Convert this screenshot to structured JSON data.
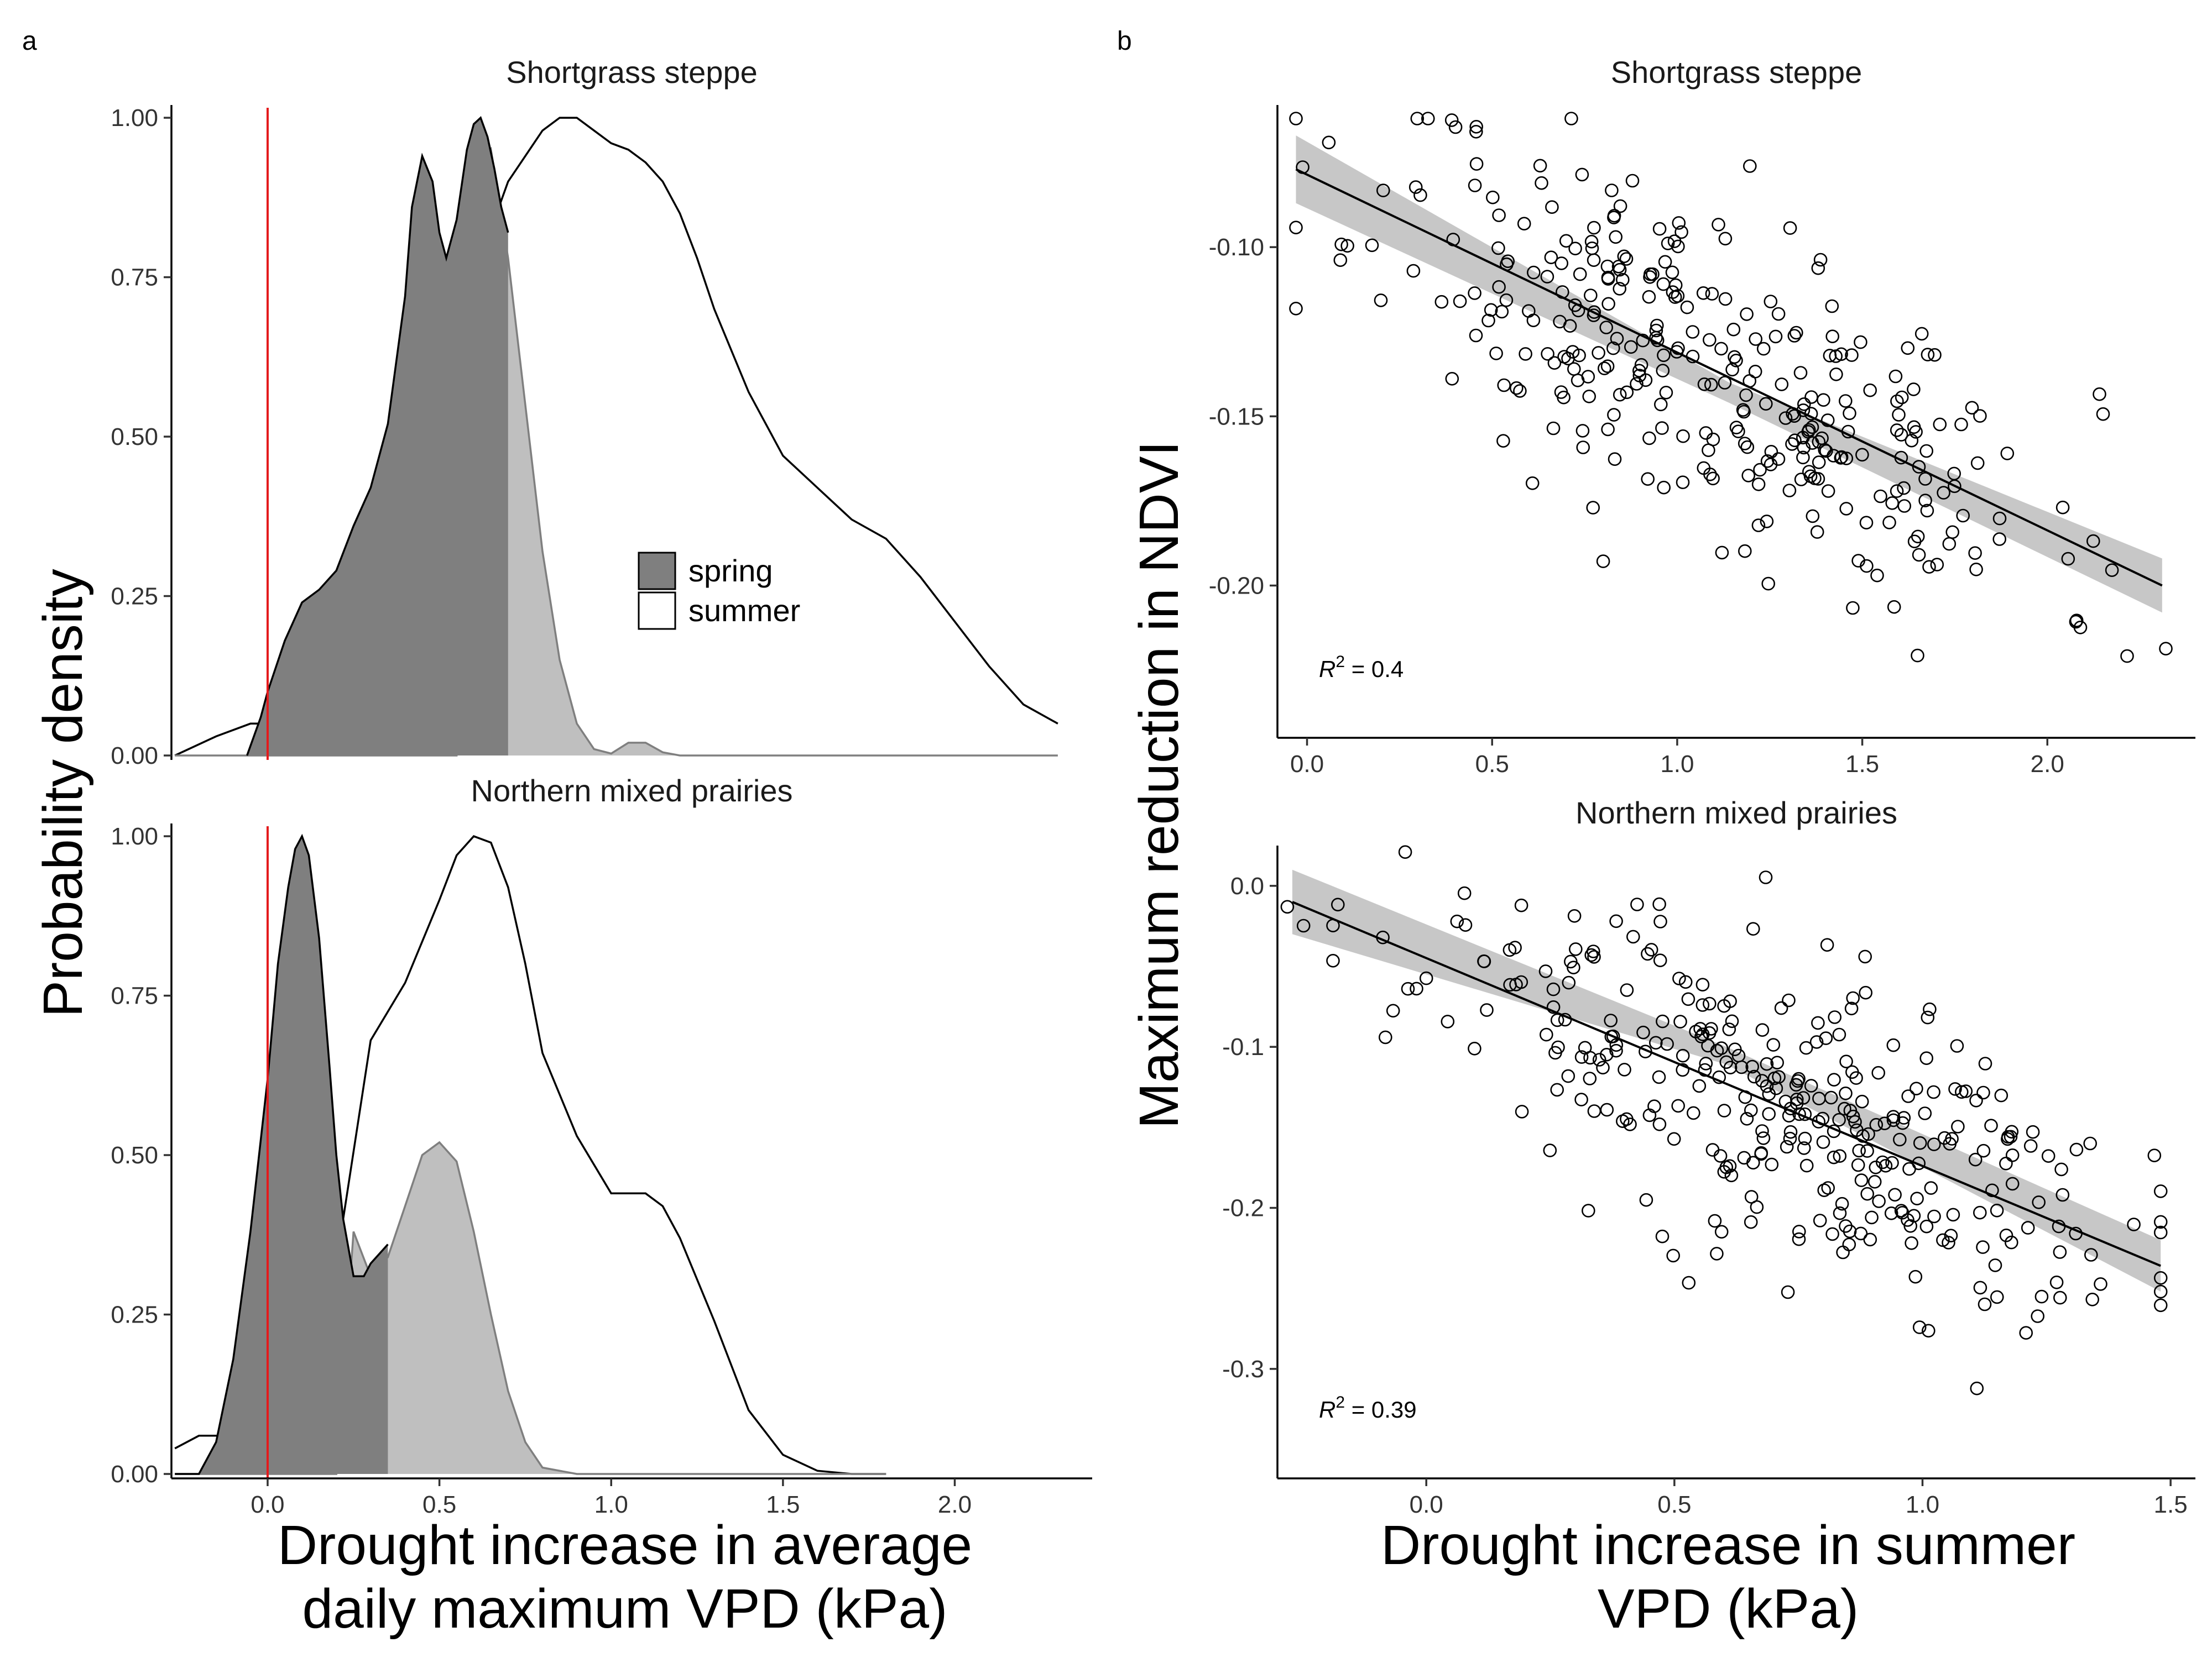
{
  "panel_tags": {
    "a": "a",
    "b": "b"
  },
  "chart_data": [
    {
      "panel": "a",
      "type": "area",
      "ylabel": "Probability density",
      "xlabel_line1": "Drought increase in average",
      "xlabel_line2": "daily maximum VPD (kPa)",
      "xlim": [
        -0.28,
        2.4
      ],
      "ylim": [
        0,
        1.02
      ],
      "x_ticks": [
        "0.0",
        "0.5",
        "1.0",
        "1.5",
        "2.0"
      ],
      "y_ticks": [
        "0.00",
        "0.25",
        "0.50",
        "0.75",
        "1.00"
      ],
      "reference_line": {
        "x": 0,
        "color": "#e41a1c"
      },
      "legend": {
        "position": "inside-right",
        "entries": [
          {
            "label": "spring",
            "color": "#7f7f7f"
          },
          {
            "label": "summer",
            "color": "#ffffff"
          }
        ]
      },
      "facets": [
        {
          "strip": "Shortgrass steppe",
          "series": [
            {
              "name": "summer",
              "fill": "#ffffff",
              "stroke": "#000000",
              "x": [
                -0.27,
                -0.15,
                -0.05,
                0.0,
                0.05,
                0.1,
                0.2,
                0.3,
                0.4,
                0.5,
                0.6,
                0.7,
                0.8,
                0.85,
                0.9,
                0.95,
                1.0,
                1.05,
                1.1,
                1.15,
                1.2,
                1.25,
                1.3,
                1.4,
                1.5,
                1.6,
                1.7,
                1.8,
                1.9,
                2.0,
                2.1,
                2.2,
                2.3
              ],
              "y": [
                0.0,
                0.03,
                0.05,
                0.05,
                0.04,
                0.03,
                0.04,
                0.1,
                0.3,
                0.55,
                0.75,
                0.9,
                0.98,
                1.0,
                1.0,
                0.98,
                0.96,
                0.95,
                0.93,
                0.9,
                0.85,
                0.78,
                0.7,
                0.57,
                0.47,
                0.42,
                0.37,
                0.34,
                0.28,
                0.21,
                0.14,
                0.08,
                0.05
              ]
            },
            {
              "name": "spring-light",
              "fill": "#bfbfbf",
              "stroke": "#7f7f7f",
              "x": [
                -0.27,
                -0.2,
                -0.1,
                0.0,
                0.1,
                0.2,
                0.3,
                0.4,
                0.5,
                0.55,
                0.6,
                0.65,
                0.7,
                0.75,
                0.8,
                0.85,
                0.9,
                0.95,
                1.0,
                1.05,
                1.1,
                1.15,
                1.2,
                1.3,
                1.5,
                1.7,
                2.0,
                2.3
              ],
              "y": [
                0.0,
                0.0,
                0.0,
                0.0,
                0.0,
                0.0,
                0.0,
                0.0,
                0.0,
                0.0,
                0.9,
                0.95,
                0.78,
                0.55,
                0.32,
                0.15,
                0.05,
                0.01,
                0.003,
                0.02,
                0.02,
                0.005,
                0.0,
                0.0,
                0.0,
                0.0,
                0.0,
                0.0
              ]
            },
            {
              "name": "spring",
              "fill": "#7f7f7f",
              "stroke": "#000000",
              "x": [
                -0.06,
                -0.02,
                0.0,
                0.05,
                0.1,
                0.15,
                0.2,
                0.25,
                0.3,
                0.35,
                0.4,
                0.42,
                0.45,
                0.48,
                0.5,
                0.52,
                0.55,
                0.58,
                0.6,
                0.62,
                0.64,
                0.66,
                0.68,
                0.7
              ],
              "y": [
                0.0,
                0.06,
                0.1,
                0.18,
                0.24,
                0.26,
                0.29,
                0.36,
                0.42,
                0.52,
                0.72,
                0.86,
                0.94,
                0.9,
                0.82,
                0.78,
                0.84,
                0.95,
                0.99,
                1.0,
                0.97,
                0.92,
                0.86,
                0.82
              ]
            }
          ]
        },
        {
          "strip": "Northern mixed prairies",
          "series": [
            {
              "name": "summer",
              "fill": "#ffffff",
              "stroke": "#000000",
              "x": [
                -0.27,
                -0.2,
                -0.1,
                0.0,
                0.05,
                0.1,
                0.15,
                0.2,
                0.3,
                0.4,
                0.5,
                0.55,
                0.6,
                0.65,
                0.7,
                0.75,
                0.8,
                0.9,
                1.0,
                1.05,
                1.1,
                1.15,
                1.2,
                1.3,
                1.4,
                1.5,
                1.6,
                1.7,
                1.8
              ],
              "y": [
                0.04,
                0.06,
                0.06,
                0.05,
                0.04,
                0.07,
                0.16,
                0.33,
                0.68,
                0.77,
                0.9,
                0.97,
                1.0,
                0.99,
                0.92,
                0.8,
                0.66,
                0.53,
                0.44,
                0.44,
                0.44,
                0.42,
                0.37,
                0.24,
                0.1,
                0.03,
                0.005,
                0.0,
                0.0
              ]
            },
            {
              "name": "spring-light",
              "fill": "#bfbfbf",
              "stroke": "#7f7f7f",
              "x": [
                -0.27,
                -0.1,
                0.0,
                0.1,
                0.2,
                0.25,
                0.3,
                0.35,
                0.4,
                0.45,
                0.5,
                0.55,
                0.6,
                0.65,
                0.7,
                0.75,
                0.8,
                0.9,
                1.0,
                1.2,
                1.5,
                1.8
              ],
              "y": [
                0.0,
                0.0,
                0.0,
                0.0,
                0.0,
                0.38,
                0.31,
                0.34,
                0.42,
                0.5,
                0.52,
                0.49,
                0.38,
                0.25,
                0.13,
                0.05,
                0.01,
                0.0,
                0.0,
                0.0,
                0.0,
                0.0
              ]
            },
            {
              "name": "spring",
              "fill": "#7f7f7f",
              "stroke": "#000000",
              "x": [
                -0.27,
                -0.2,
                -0.15,
                -0.1,
                -0.05,
                0.0,
                0.03,
                0.06,
                0.08,
                0.1,
                0.12,
                0.15,
                0.18,
                0.2,
                0.22,
                0.25,
                0.28,
                0.3,
                0.35
              ],
              "y": [
                0.0,
                0.0,
                0.05,
                0.18,
                0.38,
                0.62,
                0.8,
                0.92,
                0.98,
                1.0,
                0.97,
                0.84,
                0.64,
                0.5,
                0.4,
                0.31,
                0.31,
                0.33,
                0.36
              ]
            }
          ]
        }
      ]
    },
    {
      "panel": "b",
      "type": "scatter",
      "ylabel": "Maximum reduction in NDVI",
      "xlabel_line1": "Drought increase in summer",
      "xlabel_line2": "VPD (kPa)",
      "facets": [
        {
          "strip": "Shortgrass steppe",
          "r2": "0.4",
          "xlim": [
            -0.08,
            2.4
          ],
          "ylim": [
            -0.245,
            -0.058
          ],
          "x_ticks": [
            "0.0",
            "0.5",
            "1.0",
            "1.5",
            "2.0"
          ],
          "y_ticks": [
            "-0.10",
            "-0.15",
            "-0.20"
          ],
          "x_tick_values": [
            0,
            0.5,
            1.0,
            1.5,
            2.0
          ],
          "y_tick_values": [
            -0.1,
            -0.15,
            -0.2
          ],
          "fit": {
            "x0": -0.03,
            "y0": -0.077,
            "x1": 2.31,
            "y1": -0.2
          },
          "band": {
            "left": [
              -0.067,
              -0.087
            ],
            "center": [
              -0.14,
              -0.146
            ],
            "right": [
              -0.192,
              -0.208
            ]
          },
          "n_points": 330,
          "point_seed": 11,
          "noise_sd": 0.024,
          "x_range": [
            -0.03,
            2.32
          ],
          "x_center": 1.1,
          "x_spread": 0.45
        },
        {
          "strip": "Northern mixed prairies",
          "r2": "0.39",
          "xlim": [
            -0.3,
            1.55
          ],
          "ylim": [
            -0.368,
            0.025
          ],
          "x_ticks": [
            "0.0",
            "0.5",
            "1.0",
            "1.5"
          ],
          "y_ticks": [
            "0.0",
            "-0.1",
            "-0.2",
            "-0.3"
          ],
          "x_tick_values": [
            0,
            0.5,
            1.0,
            1.5
          ],
          "y_tick_values": [
            0.0,
            -0.1,
            -0.2,
            -0.3
          ],
          "fit": {
            "x0": -0.27,
            "y0": -0.01,
            "x1": 1.48,
            "y1": -0.236
          },
          "band": {
            "left": [
              0.01,
              -0.03
            ],
            "center": [
              -0.1,
              -0.111
            ],
            "right": [
              -0.22,
              -0.252
            ]
          },
          "n_points": 340,
          "point_seed": 23,
          "noise_sd": 0.045,
          "x_range": [
            -0.28,
            1.48
          ],
          "x_center": 0.7,
          "x_spread": 0.35
        }
      ]
    }
  ]
}
